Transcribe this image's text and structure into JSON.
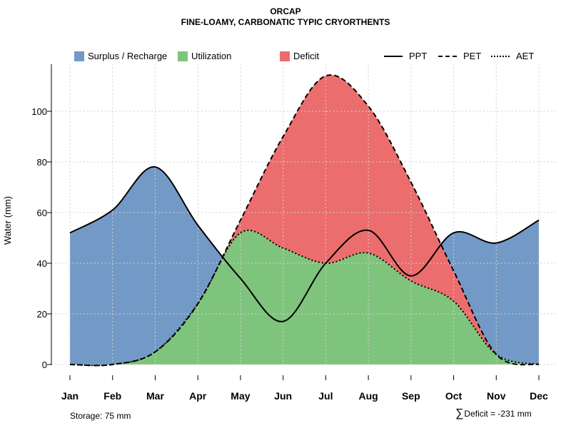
{
  "chart_data": {
    "type": "area",
    "title": "ORCAP",
    "subtitle": "FINE-LOAMY, CARBONATIC TYPIC CRYORTHENTS",
    "xlabel": "",
    "ylabel": "Water (mm)",
    "ylim": [
      0,
      118
    ],
    "yticks": [
      0,
      20,
      40,
      60,
      80,
      100
    ],
    "categories": [
      "Jan",
      "Feb",
      "Mar",
      "Apr",
      "May",
      "Jun",
      "Jul",
      "Aug",
      "Sep",
      "Oct",
      "Nov",
      "Dec"
    ],
    "series": [
      {
        "name": "PPT",
        "style": "solid",
        "values": [
          52,
          61,
          78,
          55,
          34,
          17,
          40,
          53,
          35,
          52,
          48,
          57
        ]
      },
      {
        "name": "PET",
        "style": "dashed",
        "values": [
          0,
          0,
          5,
          24,
          57,
          90,
          114,
          102,
          72,
          37,
          4,
          0
        ]
      },
      {
        "name": "AET",
        "style": "dotted",
        "values": [
          0,
          0,
          5,
          24,
          52,
          46,
          40,
          44,
          33,
          25,
          4,
          0
        ]
      }
    ],
    "areas": [
      {
        "name": "Surplus / Recharge",
        "color": "#7399C6"
      },
      {
        "name": "Utilization",
        "color": "#7FC47C"
      },
      {
        "name": "Deficit",
        "color": "#EB6D6D"
      }
    ],
    "grid": true,
    "legend": "top",
    "annotations": {
      "storage": "Storage: 75 mm",
      "deficit": "Deficit = -231 mm",
      "sum_symbol": "∑"
    }
  }
}
